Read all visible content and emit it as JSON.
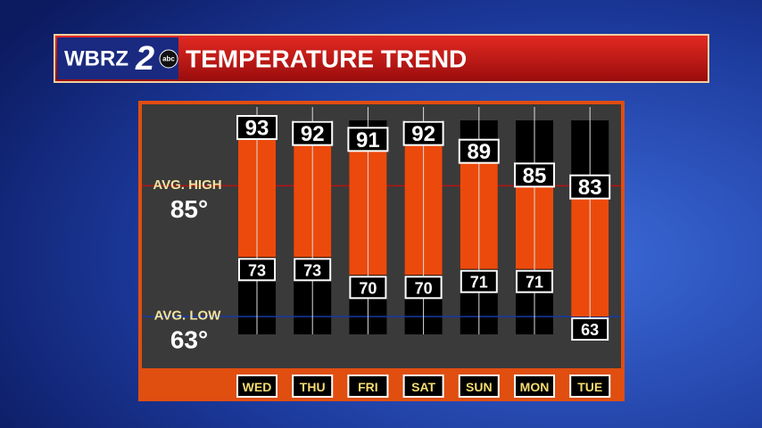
{
  "chart_data": {
    "type": "range-bar",
    "title": "TEMPERATURE TREND",
    "logo": {
      "name": "WBRZ",
      "channel": "2",
      "network": "abc"
    },
    "categories": [
      "WED",
      "THU",
      "FRI",
      "SAT",
      "SUN",
      "MON",
      "TUE"
    ],
    "highs": [
      93,
      92,
      91,
      92,
      89,
      85,
      83
    ],
    "lows": [
      73,
      73,
      70,
      70,
      71,
      71,
      63
    ],
    "bar_color": "#ec4a0c",
    "ylim": [
      60,
      96
    ],
    "reference_lines": [
      {
        "label": "AVG. HIGH",
        "value": 85,
        "value_label": "85°",
        "color": "#b41414"
      },
      {
        "label": "AVG. LOW",
        "value": 63,
        "value_label": "63°",
        "color": "#1838a8"
      }
    ]
  }
}
